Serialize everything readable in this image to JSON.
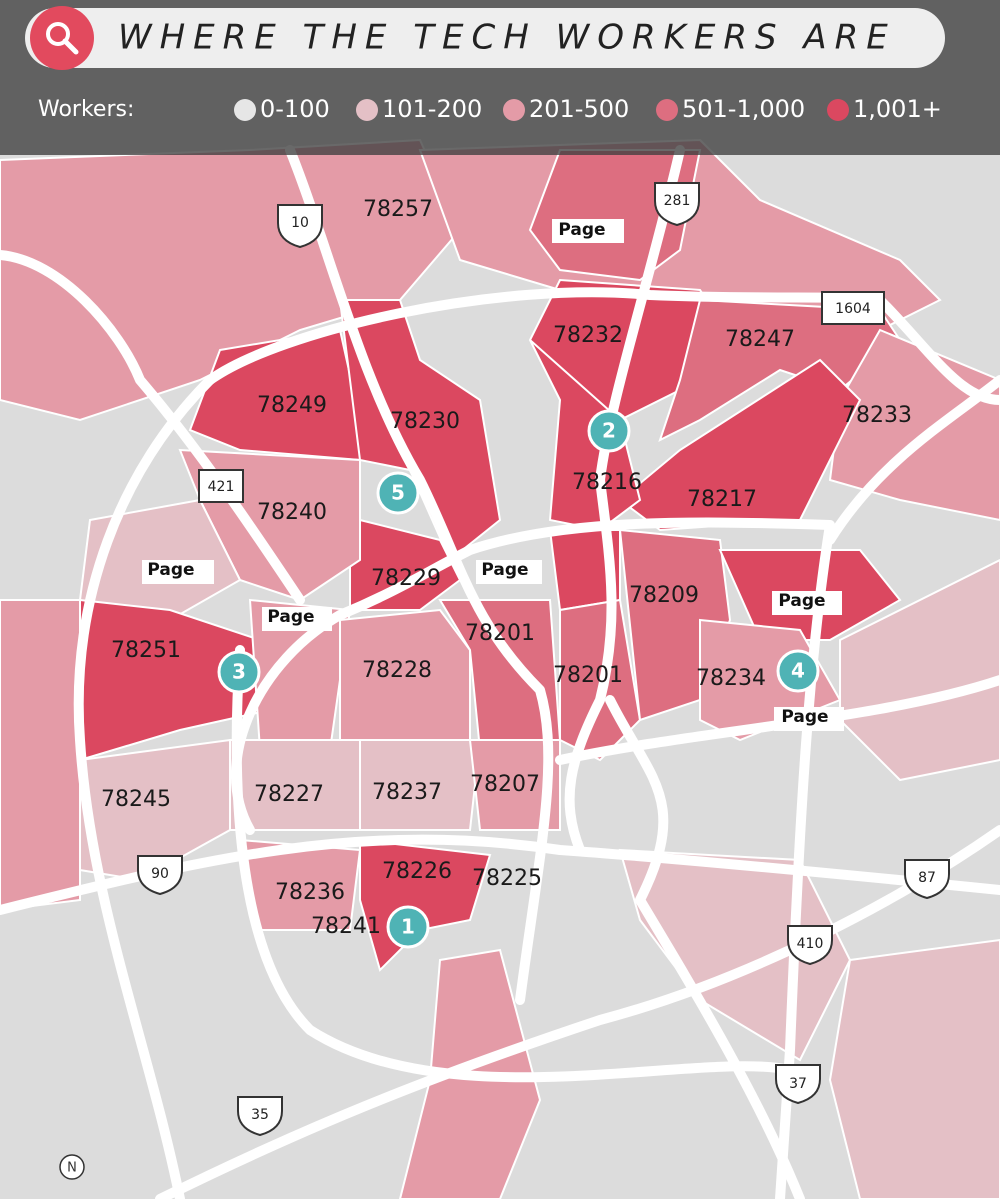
{
  "header": {
    "title": "WHERE THE TECH WORKERS ARE"
  },
  "legend": {
    "label": "Workers:",
    "items": [
      {
        "label": "0-100",
        "color": "#e6e6e6"
      },
      {
        "label": "101-200",
        "color": "#e4c0c6"
      },
      {
        "label": "201-500",
        "color": "#e49ba7"
      },
      {
        "label": "501-1,000",
        "color": "#dd6e80"
      },
      {
        "label": "1,001+",
        "color": "#db4860"
      }
    ]
  },
  "zip_labels": [
    "78257",
    "78232",
    "78247",
    "78249",
    "78230",
    "78233",
    "78216",
    "78217",
    "78240",
    "78229",
    "78209",
    "78201",
    "78251",
    "78228",
    "78201",
    "78234",
    "78245",
    "78227",
    "78237",
    "78207",
    "78226",
    "78225",
    "78236",
    "78241"
  ],
  "highways": [
    "10",
    "281",
    "1604",
    "421",
    "90",
    "87",
    "410",
    "37",
    "35"
  ],
  "page_labels": [
    "Page",
    "Page",
    "Page",
    "Page",
    "Page",
    "Page"
  ],
  "markers": [
    "1",
    "2",
    "3",
    "4",
    "5"
  ],
  "compass": "N"
}
